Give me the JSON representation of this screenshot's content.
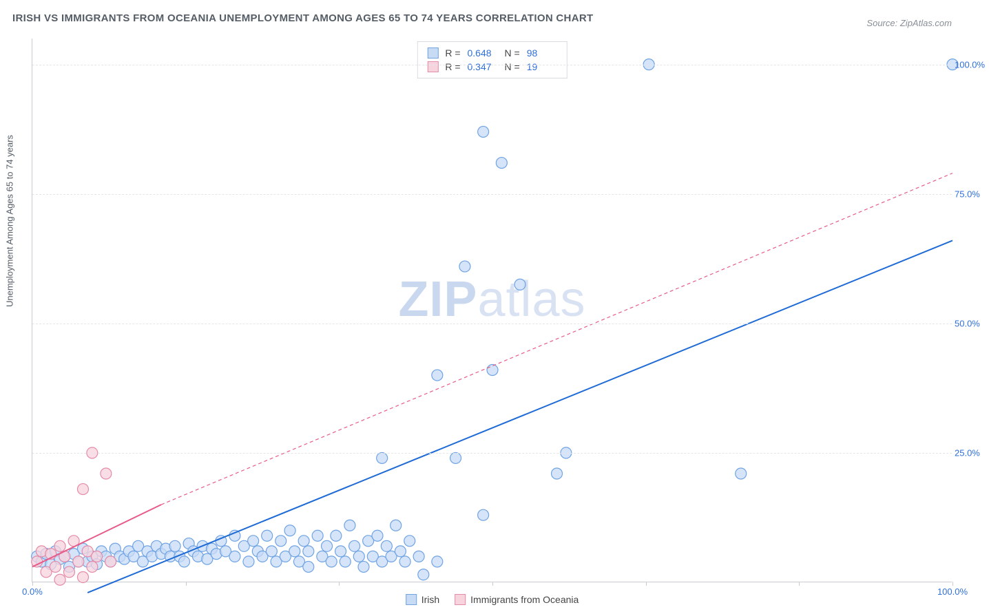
{
  "title": "IRISH VS IMMIGRANTS FROM OCEANIA UNEMPLOYMENT AMONG AGES 65 TO 74 YEARS CORRELATION CHART",
  "source_label": "Source:",
  "source_value": "ZipAtlas.com",
  "y_axis_label": "Unemployment Among Ages 65 to 74 years",
  "watermark_left": "ZIP",
  "watermark_right": "atlas",
  "chart": {
    "type": "scatter",
    "xlim": [
      0,
      100
    ],
    "ylim": [
      0,
      105
    ],
    "x_tick_positions": [
      0,
      16.67,
      33.33,
      50,
      66.67,
      83.33,
      100
    ],
    "x_tick_labels": {
      "0": "0.0%",
      "100": "100.0%"
    },
    "y_tick_positions": [
      25,
      50,
      75,
      100
    ],
    "y_tick_labels": {
      "25": "25.0%",
      "50": "50.0%",
      "75": "75.0%",
      "100": "100.0%"
    },
    "grid_color": "#e4e6ea",
    "axis_color": "#c8ccd2",
    "background_color": "#ffffff",
    "marker_radius": 8,
    "marker_stroke_width": 1.2,
    "line_width": 2,
    "series": [
      {
        "name": "Irish",
        "color_fill": "#c7dbf5",
        "color_stroke": "#6fa3e4",
        "line_color": "#1f6bd6",
        "line_dash": "none",
        "R": "0.648",
        "N": "98",
        "trend": {
          "x1": 6,
          "y1": -2,
          "x2": 100,
          "y2": 66
        },
        "trend_ext": {
          "x1": 100,
          "y1": 66,
          "x2": 100,
          "y2": 66
        },
        "points": [
          [
            0.5,
            5
          ],
          [
            1,
            4
          ],
          [
            1.5,
            5.5
          ],
          [
            2,
            3.5
          ],
          [
            2.5,
            6
          ],
          [
            3,
            4.5
          ],
          [
            3.5,
            5
          ],
          [
            4,
            3
          ],
          [
            4.5,
            5.5
          ],
          [
            5,
            4
          ],
          [
            5.5,
            6.5
          ],
          [
            6,
            4
          ],
          [
            6.5,
            5
          ],
          [
            7,
            3.5
          ],
          [
            7.5,
            6
          ],
          [
            8,
            5
          ],
          [
            8.5,
            4
          ],
          [
            9,
            6.5
          ],
          [
            9.5,
            5
          ],
          [
            10,
            4.5
          ],
          [
            10.5,
            6
          ],
          [
            11,
            5
          ],
          [
            11.5,
            7
          ],
          [
            12,
            4
          ],
          [
            12.5,
            6
          ],
          [
            13,
            5
          ],
          [
            13.5,
            7
          ],
          [
            14,
            5.5
          ],
          [
            14.5,
            6.5
          ],
          [
            15,
            5
          ],
          [
            15.5,
            7
          ],
          [
            16,
            5
          ],
          [
            16.5,
            4
          ],
          [
            17,
            7.5
          ],
          [
            17.5,
            6
          ],
          [
            18,
            5
          ],
          [
            18.5,
            7
          ],
          [
            19,
            4.5
          ],
          [
            19.5,
            6.5
          ],
          [
            20,
            5.5
          ],
          [
            20.5,
            8
          ],
          [
            21,
            6
          ],
          [
            22,
            5
          ],
          [
            22,
            9
          ],
          [
            23,
            7
          ],
          [
            23.5,
            4
          ],
          [
            24,
            8
          ],
          [
            24.5,
            6
          ],
          [
            25,
            5
          ],
          [
            25.5,
            9
          ],
          [
            26,
            6
          ],
          [
            26.5,
            4
          ],
          [
            27,
            8
          ],
          [
            27.5,
            5
          ],
          [
            28,
            10
          ],
          [
            28.5,
            6
          ],
          [
            29,
            4
          ],
          [
            29.5,
            8
          ],
          [
            30,
            6
          ],
          [
            30,
            3
          ],
          [
            31,
            9
          ],
          [
            31.5,
            5
          ],
          [
            32,
            7
          ],
          [
            32.5,
            4
          ],
          [
            33,
            9
          ],
          [
            33.5,
            6
          ],
          [
            34,
            4
          ],
          [
            34.5,
            11
          ],
          [
            35,
            7
          ],
          [
            35.5,
            5
          ],
          [
            36,
            3
          ],
          [
            36.5,
            8
          ],
          [
            37,
            5
          ],
          [
            37.5,
            9
          ],
          [
            38,
            4
          ],
          [
            38.5,
            7
          ],
          [
            39,
            5
          ],
          [
            39.5,
            11
          ],
          [
            40,
            6
          ],
          [
            40.5,
            4
          ],
          [
            41,
            8
          ],
          [
            42,
            5
          ],
          [
            42.5,
            1.5
          ],
          [
            44,
            4
          ],
          [
            38,
            24
          ],
          [
            44,
            40
          ],
          [
            47,
            61
          ],
          [
            46,
            24
          ],
          [
            49,
            13
          ],
          [
            50,
            41
          ],
          [
            51,
            81
          ],
          [
            49,
            87
          ],
          [
            53,
            57.5
          ],
          [
            57,
            21
          ],
          [
            58,
            25
          ],
          [
            67,
            100
          ],
          [
            77,
            21
          ],
          [
            100,
            100
          ]
        ]
      },
      {
        "name": "Immigrants from Oceania",
        "color_fill": "#f7d3de",
        "color_stroke": "#e48ba8",
        "line_color": "#e85b88",
        "line_dash": "5,4",
        "R": "0.347",
        "N": "19",
        "trend": {
          "x1": 0,
          "y1": 3,
          "x2": 14,
          "y2": 15
        },
        "trend_ext": {
          "x1": 14,
          "y1": 15,
          "x2": 100,
          "y2": 79
        },
        "points": [
          [
            0.5,
            4
          ],
          [
            1,
            6
          ],
          [
            1.5,
            2
          ],
          [
            2,
            5.5
          ],
          [
            2.5,
            3
          ],
          [
            3,
            7
          ],
          [
            3,
            0.5
          ],
          [
            3.5,
            5
          ],
          [
            4,
            2
          ],
          [
            4.5,
            8
          ],
          [
            5,
            4
          ],
          [
            5.5,
            1
          ],
          [
            5.5,
            18
          ],
          [
            6,
            6
          ],
          [
            6.5,
            3
          ],
          [
            6.5,
            25
          ],
          [
            7,
            5
          ],
          [
            8,
            21
          ],
          [
            8.5,
            4
          ]
        ]
      }
    ]
  },
  "legend_bottom": [
    {
      "label": "Irish",
      "fill": "#c7dbf5",
      "stroke": "#6fa3e4"
    },
    {
      "label": "Immigrants from Oceania",
      "fill": "#f7d3de",
      "stroke": "#e48ba8"
    }
  ]
}
